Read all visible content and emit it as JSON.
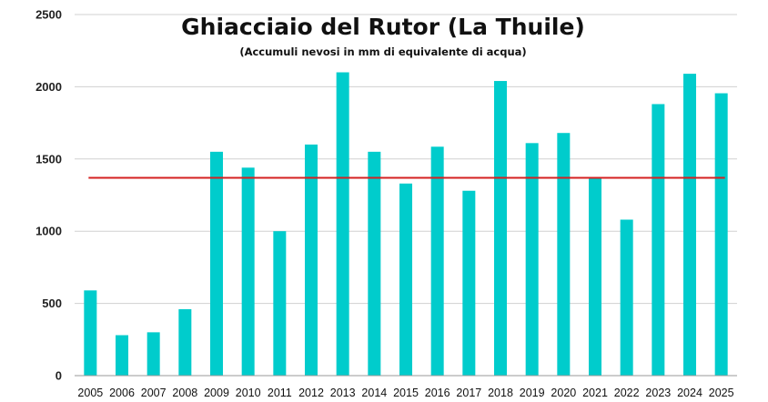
{
  "chart_data": {
    "type": "bar",
    "title": "Ghiacciaio del Rutor (La Thuile)",
    "subtitle": "(Accumuli nevosi in mm di equivalente di acqua)",
    "xlabel": "",
    "ylabel": "",
    "categories": [
      "2005",
      "2006",
      "2007",
      "2008",
      "2009",
      "2010",
      "2011",
      "2012",
      "2013",
      "2014",
      "2015",
      "2016",
      "2017",
      "2018",
      "2019",
      "2020",
      "2021",
      "2022",
      "2023",
      "2024",
      "2025"
    ],
    "values": [
      590,
      280,
      300,
      460,
      1550,
      1440,
      1000,
      1600,
      2100,
      1550,
      1330,
      1585,
      1280,
      2040,
      1610,
      1680,
      1370,
      1080,
      1880,
      2090,
      1955
    ],
    "ylim": [
      0,
      2500
    ],
    "yticks": [
      0,
      500,
      1000,
      1500,
      2000,
      2500
    ],
    "reference_line": 1370,
    "grid": true,
    "colors": {
      "bar": "#00CCCC",
      "reference_line": "#D42020",
      "grid": "#D0D0D0",
      "axis": "#9A9A9A"
    }
  }
}
